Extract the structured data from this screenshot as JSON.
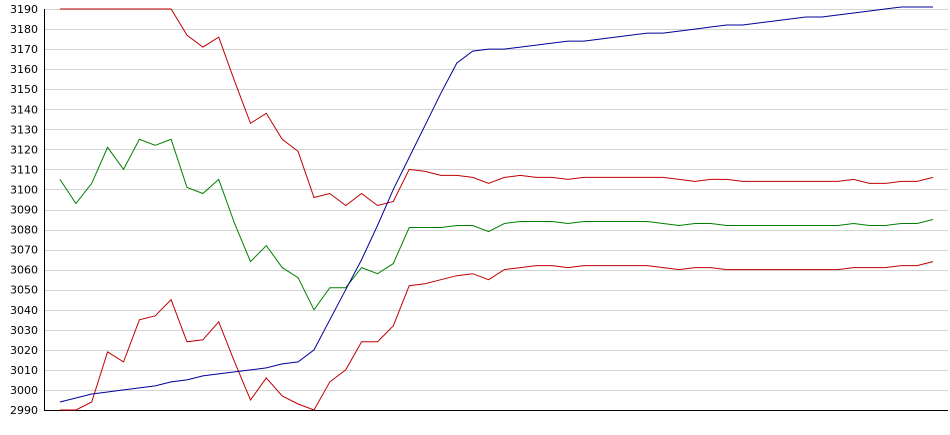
{
  "chart_data": {
    "type": "line",
    "ylim": [
      2990,
      3190
    ],
    "yticks": [
      2990,
      3000,
      3010,
      3020,
      3030,
      3040,
      3050,
      3060,
      3070,
      3080,
      3090,
      3100,
      3110,
      3120,
      3130,
      3140,
      3150,
      3160,
      3170,
      3180,
      3190
    ],
    "grid": true,
    "legend": "none",
    "x": [
      1,
      2,
      3,
      4,
      5,
      6,
      7,
      8,
      9,
      10,
      11,
      12,
      13,
      14,
      15,
      16,
      17,
      18,
      19,
      20,
      21,
      22,
      23,
      24,
      25,
      26,
      27,
      28,
      29,
      30,
      31,
      32,
      33,
      34,
      35,
      36,
      37,
      38,
      39,
      40,
      41,
      42,
      43,
      44,
      45,
      46,
      47,
      48,
      49,
      50,
      51,
      52,
      53,
      54,
      55,
      56
    ],
    "series": [
      {
        "color": "#c00000",
        "values": [
          3190,
          3190,
          3190,
          3190,
          3190,
          3190,
          3190,
          3190,
          3177,
          3171,
          3176,
          3154,
          3133,
          3138,
          3125,
          3119,
          3096,
          3098,
          3092,
          3098,
          3092,
          3094,
          3110,
          3109,
          3107,
          3107,
          3106,
          3103,
          3106,
          3107,
          3106,
          3106,
          3105,
          3106,
          3106,
          3106,
          3106,
          3106,
          3106,
          3105,
          3104,
          3105,
          3105,
          3104,
          3104,
          3104,
          3104,
          3104,
          3104,
          3104,
          3105,
          3103,
          3103,
          3104,
          3104,
          3106
        ]
      },
      {
        "color": "#008000",
        "values": [
          3105,
          3093,
          3103,
          3121,
          3110,
          3125,
          3122,
          3125,
          3101,
          3098,
          3105,
          3083,
          3064,
          3072,
          3061,
          3056,
          3040,
          3051,
          3051,
          3061,
          3058,
          3063,
          3081,
          3081,
          3081,
          3082,
          3082,
          3079,
          3083,
          3084,
          3084,
          3084,
          3083,
          3084,
          3084,
          3084,
          3084,
          3084,
          3083,
          3082,
          3083,
          3083,
          3082,
          3082,
          3082,
          3082,
          3082,
          3082,
          3082,
          3082,
          3083,
          3082,
          3082,
          3083,
          3083,
          3085
        ]
      },
      {
        "color": "#c00000",
        "values": [
          2990,
          2990,
          2994,
          3019,
          3014,
          3035,
          3037,
          3045,
          3024,
          3025,
          3034,
          3014,
          2995,
          3006,
          2997,
          2993,
          2990,
          3004,
          3010,
          3024,
          3024,
          3032,
          3052,
          3053,
          3055,
          3057,
          3058,
          3055,
          3060,
          3061,
          3062,
          3062,
          3061,
          3062,
          3062,
          3062,
          3062,
          3062,
          3061,
          3060,
          3061,
          3061,
          3060,
          3060,
          3060,
          3060,
          3060,
          3060,
          3060,
          3060,
          3061,
          3061,
          3061,
          3062,
          3062,
          3064
        ]
      },
      {
        "color": "#000099",
        "values": [
          2994,
          2996,
          2998,
          2999,
          3000,
          3001,
          3002,
          3004,
          3005,
          3007,
          3008,
          3009,
          3010,
          3011,
          3013,
          3014,
          3020,
          3035,
          3050,
          3065,
          3082,
          3100,
          3116,
          3132,
          3148,
          3163,
          3169,
          3170,
          3170,
          3171,
          3172,
          3173,
          3174,
          3174,
          3175,
          3176,
          3177,
          3178,
          3178,
          3179,
          3180,
          3181,
          3182,
          3182,
          3183,
          3184,
          3185,
          3186,
          3186,
          3187,
          3188,
          3189,
          3190,
          3191,
          3191,
          3191
        ]
      }
    ]
  }
}
